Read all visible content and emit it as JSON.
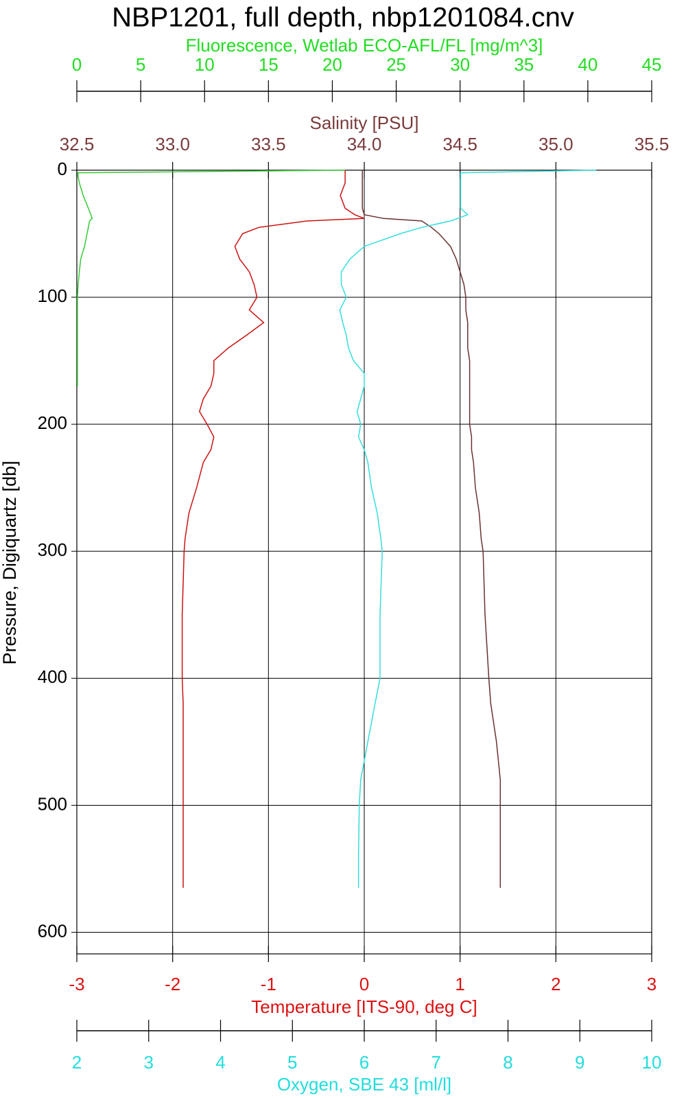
{
  "chart_data": {
    "type": "line",
    "title": "NBP1201, full depth, nbp1201084.cnv",
    "ylabel": "Pressure, Digiquartz [db]",
    "ylim": [
      0,
      617
    ],
    "yticks": [
      0,
      100,
      200,
      300,
      400,
      500,
      600
    ],
    "y_inverted": true,
    "grid": true,
    "pressure": [
      0,
      2,
      5,
      10,
      20,
      30,
      35,
      38,
      40,
      45,
      50,
      60,
      70,
      80,
      90,
      100,
      110,
      120,
      130,
      140,
      150,
      160,
      170,
      180,
      190,
      200,
      210,
      220,
      230,
      250,
      270,
      290,
      300,
      350,
      400,
      420,
      450,
      480,
      500,
      540,
      565
    ],
    "x_axes": [
      {
        "label": "Fluorescence, Wetlab ECO-AFL/FL [mg/m^3]",
        "color": "#22dd22",
        "position": "top-outer",
        "xlim": [
          0,
          45
        ],
        "xticks": [
          0,
          5,
          10,
          15,
          20,
          25,
          30,
          35,
          40,
          45
        ]
      },
      {
        "label": "Salinity [PSU]",
        "color": "#7a3b3b",
        "position": "top",
        "xlim": [
          32.5,
          35.5
        ],
        "xticks": [
          32.5,
          {
            "value": 33,
            "label": "33.0"
          },
          33.5,
          {
            "value": 34,
            "label": "34.0"
          },
          34.5,
          {
            "value": 35,
            "label": "35.0"
          },
          35.5
        ]
      },
      {
        "label": "Temperature [ITS-90, deg C]",
        "color": "#dd1111",
        "position": "bottom",
        "grid": true,
        "xlim": [
          -3,
          3
        ],
        "xticks": [
          -3,
          -2,
          -1,
          0,
          1,
          2,
          3
        ]
      },
      {
        "label": "Oxygen, SBE 43 [ml/l]",
        "color": "#22dddd",
        "position": "bottom-outer",
        "xlim": [
          2,
          10
        ],
        "xticks": [
          2,
          3,
          4,
          5,
          6,
          7,
          8,
          9,
          10
        ]
      }
    ],
    "series": [
      {
        "axis": 2,
        "color": "#cc1111",
        "values": [
          -0.2,
          -0.2,
          -0.2,
          -0.2,
          -0.25,
          -0.2,
          -0.1,
          0.0,
          -0.6,
          -1.1,
          -1.27,
          -1.35,
          -1.3,
          -1.2,
          -1.15,
          -1.12,
          -1.2,
          -1.05,
          -1.23,
          -1.42,
          -1.57,
          -1.57,
          -1.6,
          -1.68,
          -1.72,
          -1.64,
          -1.57,
          -1.6,
          -1.68,
          -1.75,
          -1.83,
          -1.87,
          -1.88,
          -1.9,
          -1.9,
          -1.89,
          -1.89,
          -1.89,
          -1.89,
          -1.89,
          -1.89
        ]
      },
      {
        "axis": 1,
        "color": "#6b3030",
        "values": [
          33.99,
          33.99,
          33.99,
          33.99,
          33.99,
          33.99,
          34.0,
          34.1,
          34.3,
          34.35,
          34.39,
          34.45,
          34.48,
          34.5,
          34.52,
          34.53,
          34.53,
          34.54,
          34.54,
          34.54,
          34.55,
          34.55,
          34.55,
          34.55,
          34.55,
          34.55,
          34.56,
          34.56,
          34.57,
          34.58,
          34.6,
          34.61,
          34.62,
          34.63,
          34.65,
          34.66,
          34.69,
          34.71,
          34.71,
          34.71,
          34.71
        ]
      },
      {
        "axis": 3,
        "color": "#33dddd",
        "values": [
          9.23,
          7.34,
          7.34,
          7.34,
          7.34,
          7.34,
          7.44,
          7.3,
          7.2,
          6.8,
          6.5,
          6.0,
          5.8,
          5.68,
          5.68,
          5.75,
          5.66,
          5.7,
          5.75,
          5.78,
          5.85,
          6.0,
          6.0,
          5.95,
          5.9,
          5.95,
          5.92,
          6.0,
          6.05,
          6.1,
          6.18,
          6.23,
          6.25,
          6.22,
          6.22,
          6.15,
          6.05,
          5.95,
          5.93,
          5.92,
          5.92
        ]
      },
      {
        "axis": 0,
        "color": "#33cc33",
        "values": [
          21,
          0.1,
          0.1,
          0.2,
          0.5,
          0.9,
          1.1,
          1.2,
          1.0,
          0.9,
          0.8,
          0.6,
          0.3,
          0.2,
          0.1,
          0.05,
          0.05,
          0.05,
          0.05,
          0.05,
          0.05,
          0.05,
          0.05,
          null,
          null,
          null,
          null,
          null,
          null,
          null,
          null,
          null,
          null,
          null,
          null,
          null,
          null,
          null,
          null,
          null,
          null
        ]
      }
    ]
  }
}
